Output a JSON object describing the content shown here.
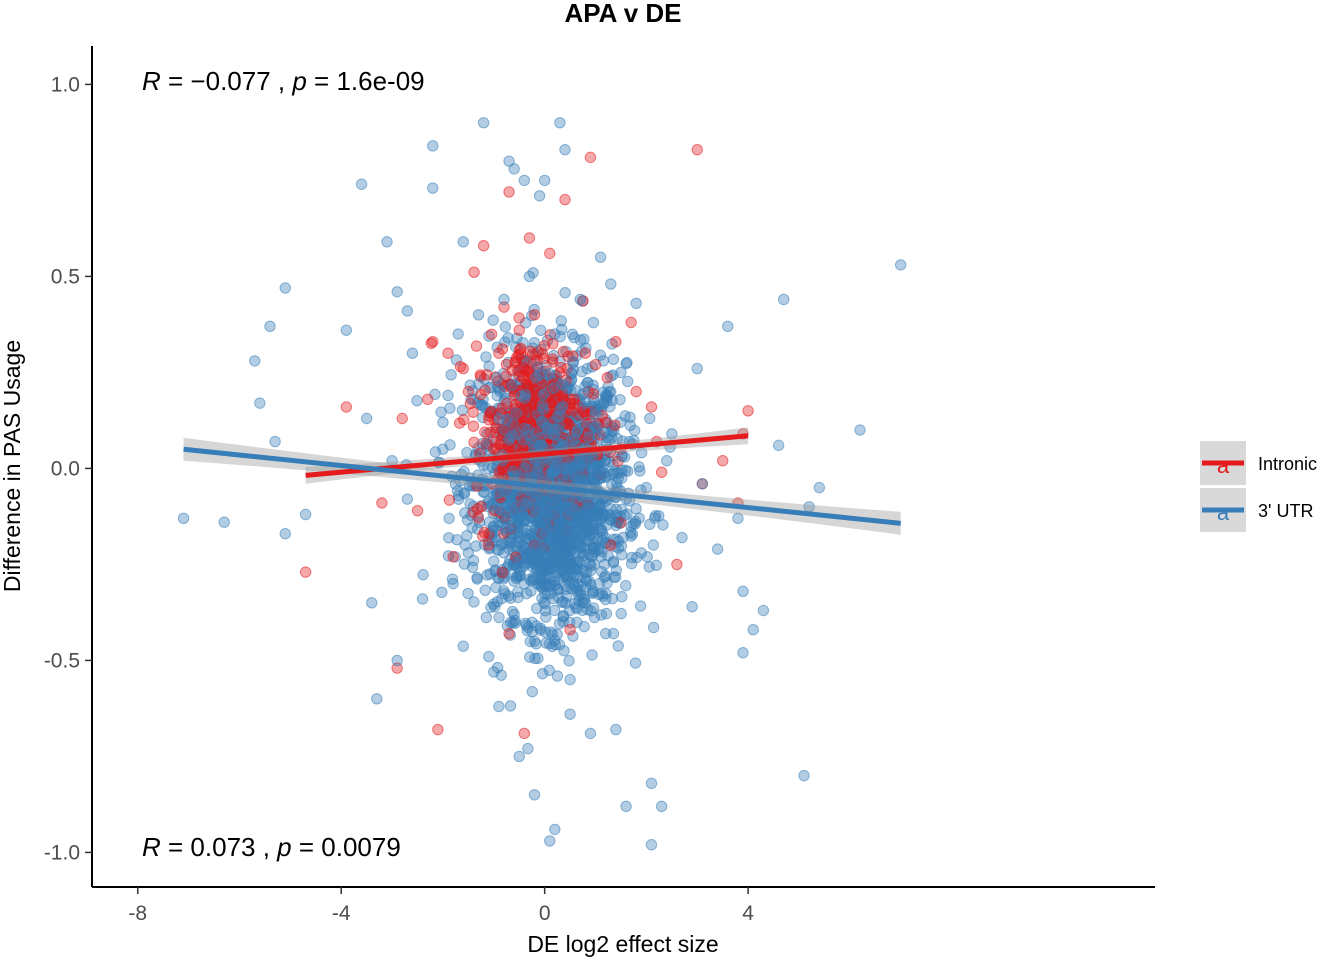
{
  "chart_data": {
    "type": "scatter",
    "title": "APA v DE",
    "xlabel": "DE log2 effect size",
    "ylabel": "Difference in PAS Usage",
    "xlim": [
      -8.9,
      12.0
    ],
    "ylim": [
      -1.09,
      1.1
    ],
    "x_ticks": [
      -8,
      -4,
      0,
      4
    ],
    "x_tick_labels": [
      "-8",
      "-4",
      "0",
      "4"
    ],
    "y_ticks": [
      -1.0,
      -0.5,
      0.0,
      0.5,
      1.0
    ],
    "y_tick_labels": [
      "-1.0",
      "-0.5",
      "0.0",
      "0.5",
      "1.0"
    ],
    "grid": false,
    "legend_position": "right",
    "legend_key_glyph": "a",
    "series": [
      {
        "name": "Intronic",
        "color": "#E41A1C",
        "points": [
          [
            -4.7,
            -0.27
          ],
          [
            -3.9,
            0.16
          ],
          [
            -3.2,
            -0.09
          ],
          [
            -2.9,
            -0.52
          ],
          [
            -2.8,
            0.13
          ],
          [
            -2.5,
            -0.11
          ],
          [
            -2.3,
            0.18
          ],
          [
            -2.2,
            0.33
          ],
          [
            -2.1,
            -0.68
          ],
          [
            -1.9,
            0.3
          ],
          [
            -1.8,
            -0.23
          ],
          [
            -1.6,
            0.26
          ],
          [
            -1.5,
            0.2
          ],
          [
            -1.4,
            0.11
          ],
          [
            -1.2,
            0.58
          ],
          [
            -1.1,
            -0.17
          ],
          [
            -1.0,
            0.05
          ],
          [
            -0.9,
            0.3
          ],
          [
            -0.8,
            0.42
          ],
          [
            -0.7,
            0.72
          ],
          [
            -0.7,
            -0.43
          ],
          [
            -0.6,
            0.2
          ],
          [
            -0.5,
            0.36
          ],
          [
            -0.4,
            0.12
          ],
          [
            -0.4,
            -0.1
          ],
          [
            -0.3,
            0.6
          ],
          [
            -0.3,
            0.25
          ],
          [
            -0.2,
            0.4
          ],
          [
            -0.2,
            0.08
          ],
          [
            -0.1,
            0.16
          ],
          [
            -0.1,
            -0.05
          ],
          [
            0.0,
            0.32
          ],
          [
            0.1,
            0.56
          ],
          [
            0.1,
            0.13
          ],
          [
            0.2,
            0.04
          ],
          [
            0.3,
            0.25
          ],
          [
            0.4,
            0.7
          ],
          [
            0.5,
            0.18
          ],
          [
            0.6,
            0.1
          ],
          [
            0.7,
            -0.08
          ],
          [
            0.9,
            0.81
          ],
          [
            1.0,
            0.27
          ],
          [
            1.2,
            0.12
          ],
          [
            1.4,
            0.33
          ],
          [
            1.5,
            0.05
          ],
          [
            1.7,
            0.38
          ],
          [
            1.8,
            0.2
          ],
          [
            2.1,
            0.16
          ],
          [
            2.2,
            0.07
          ],
          [
            2.3,
            -0.01
          ],
          [
            2.6,
            -0.25
          ],
          [
            3.0,
            0.83
          ],
          [
            3.1,
            -0.04
          ],
          [
            3.5,
            0.02
          ],
          [
            3.8,
            -0.09
          ],
          [
            3.9,
            0.09
          ],
          [
            4.0,
            0.15
          ],
          [
            -0.4,
            -0.69
          ],
          [
            0.5,
            -0.42
          ],
          [
            1.3,
            -0.2
          ],
          [
            -0.6,
            0.02
          ],
          [
            0.2,
            0.22
          ],
          [
            -0.2,
            -0.2
          ],
          [
            0.8,
            0.3
          ]
        ],
        "fit": {
          "x": [
            -4.7,
            4.0
          ],
          "y": [
            -0.018,
            0.085
          ],
          "ci_half_width": 0.022
        }
      },
      {
        "name": "3' UTR",
        "color": "#377EB8",
        "points": [
          [
            -7.1,
            -0.13
          ],
          [
            -6.3,
            -0.14
          ],
          [
            -5.7,
            0.28
          ],
          [
            -5.6,
            0.17
          ],
          [
            -5.4,
            0.37
          ],
          [
            -5.3,
            0.07
          ],
          [
            -5.1,
            -0.17
          ],
          [
            -5.1,
            0.47
          ],
          [
            -4.7,
            -0.12
          ],
          [
            -3.9,
            0.36
          ],
          [
            -3.6,
            0.74
          ],
          [
            -3.5,
            0.13
          ],
          [
            -3.4,
            -0.35
          ],
          [
            -3.3,
            -0.6
          ],
          [
            -3.1,
            0.59
          ],
          [
            -2.9,
            0.46
          ],
          [
            -2.9,
            -0.5
          ],
          [
            -2.7,
            0.41
          ],
          [
            -2.6,
            0.3
          ],
          [
            -2.4,
            -0.34
          ],
          [
            -2.2,
            0.84
          ],
          [
            -2.2,
            0.73
          ],
          [
            -2.0,
            0.12
          ],
          [
            -1.9,
            0.19
          ],
          [
            -1.7,
            0.35
          ],
          [
            -1.6,
            0.59
          ],
          [
            -1.3,
            0.4
          ],
          [
            -1.2,
            0.9
          ],
          [
            -1.1,
            -0.49
          ],
          [
            -1.0,
            -0.53
          ],
          [
            -0.9,
            -0.62
          ],
          [
            -0.8,
            0.44
          ],
          [
            -0.7,
            0.8
          ],
          [
            -0.6,
            0.78
          ],
          [
            -0.5,
            -0.75
          ],
          [
            -0.4,
            0.75
          ],
          [
            -0.3,
            0.5
          ],
          [
            -0.2,
            -0.85
          ],
          [
            -0.1,
            0.71
          ],
          [
            0.0,
            0.75
          ],
          [
            0.1,
            -0.97
          ],
          [
            0.2,
            -0.94
          ],
          [
            0.3,
            0.9
          ],
          [
            0.4,
            0.83
          ],
          [
            0.5,
            -0.64
          ],
          [
            0.7,
            0.44
          ],
          [
            0.9,
            -0.69
          ],
          [
            1.1,
            0.55
          ],
          [
            1.2,
            -0.43
          ],
          [
            1.3,
            0.48
          ],
          [
            1.4,
            -0.68
          ],
          [
            1.6,
            -0.88
          ],
          [
            1.8,
            0.43
          ],
          [
            1.9,
            -0.22
          ],
          [
            2.1,
            -0.82
          ],
          [
            2.1,
            -0.98
          ],
          [
            2.3,
            -0.88
          ],
          [
            2.5,
            0.09
          ],
          [
            2.7,
            -0.18
          ],
          [
            2.9,
            -0.36
          ],
          [
            3.0,
            0.26
          ],
          [
            3.1,
            -0.04
          ],
          [
            3.4,
            -0.21
          ],
          [
            3.6,
            0.37
          ],
          [
            3.8,
            -0.13
          ],
          [
            3.9,
            -0.32
          ],
          [
            3.9,
            -0.48
          ],
          [
            4.1,
            -0.42
          ],
          [
            4.3,
            -0.37
          ],
          [
            4.6,
            0.06
          ],
          [
            4.7,
            0.44
          ],
          [
            5.2,
            -0.1
          ],
          [
            5.1,
            -0.8
          ],
          [
            5.4,
            -0.05
          ],
          [
            6.2,
            0.1
          ],
          [
            7.0,
            0.53
          ],
          [
            -2.7,
            -0.08
          ],
          [
            -1.5,
            -0.22
          ],
          [
            0.6,
            -0.05
          ],
          [
            1.0,
            0.15
          ],
          [
            -0.4,
            -0.3
          ],
          [
            0.3,
            -0.2
          ],
          [
            0.8,
            -0.35
          ],
          [
            -1.0,
            -0.15
          ],
          [
            1.5,
            0.25
          ],
          [
            -2.0,
            0.05
          ],
          [
            2.0,
            -0.05
          ],
          [
            -0.8,
            0.1
          ],
          [
            0.2,
            0.35
          ],
          [
            -0.2,
            -0.45
          ],
          [
            0.5,
            -0.55
          ],
          [
            -1.3,
            0.22
          ],
          [
            1.2,
            -0.28
          ],
          [
            -0.6,
            -0.38
          ],
          [
            0.9,
            0.04
          ],
          [
            -3.0,
            0.02
          ],
          [
            2.4,
            0.02
          ],
          [
            -1.8,
            -0.3
          ],
          [
            1.7,
            -0.15
          ]
        ],
        "fit": {
          "x": [
            -7.1,
            7.0
          ],
          "y": [
            0.05,
            -0.143
          ],
          "ci_half_width": 0.03
        }
      }
    ],
    "annotations": [
      {
        "text": "R = −0.077 , p = 1.6e-09",
        "R": "−0.077",
        "p": "1.6e-09",
        "color": "#377EB8",
        "position": "top-left"
      },
      {
        "text": "R = 0.073 , p = 0.0079",
        "R": "0.073",
        "p": "0.0079",
        "color": "#E41A1C",
        "position": "bottom-left"
      }
    ]
  }
}
